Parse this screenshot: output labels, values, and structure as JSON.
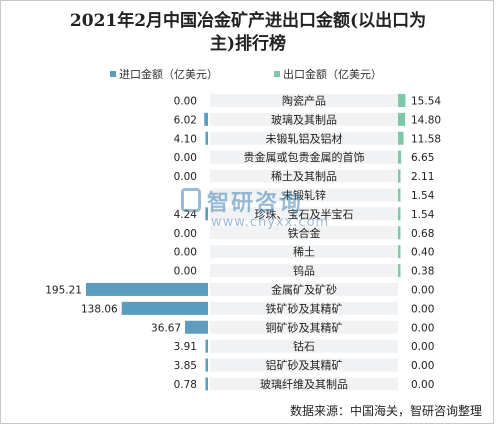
{
  "chart_data": {
    "type": "bar",
    "title": "2021年2月中国冶金矿产进出口金额(以出口为主)排行榜",
    "title_line1": "2021年2月中国冶金矿产进出口金额(以出口为",
    "title_line2": "主)排行榜",
    "categories": [
      "陶瓷产品",
      "玻璃及其制品",
      "未锻轧铝及铝材",
      "贵金属或包贵金属的首饰",
      "稀土及其制品",
      "未锻轧锌",
      "珍珠、宝石及半宝石",
      "铁合金",
      "稀土",
      "钨品",
      "金属矿及矿砂",
      "铁矿砂及其精矿",
      "铜矿砂及其精矿",
      "钴石",
      "铝矿砂及其精矿",
      "玻璃纤维及其制品"
    ],
    "series": [
      {
        "name": "进口金额（亿美元）",
        "values": [
          0.0,
          6.02,
          4.1,
          0.0,
          0.0,
          0.0,
          4.24,
          0.0,
          0.0,
          0.0,
          195.21,
          138.06,
          36.67,
          3.91,
          3.85,
          0.78
        ],
        "labels": [
          "0.00",
          "6.02",
          "4.10",
          "0.00",
          "0.00",
          "",
          "4.24",
          "0.00",
          "0.00",
          "0.00",
          "195.21",
          "138.06",
          "36.67",
          "3.91",
          "3.85",
          "0.78"
        ],
        "color": "#5b9cc0"
      },
      {
        "name": "出口金额（亿美元）",
        "values": [
          15.54,
          14.8,
          11.58,
          6.65,
          2.11,
          1.54,
          1.54,
          0.68,
          0.4,
          0.38,
          0.0,
          0.0,
          0.0,
          0.0,
          0.0,
          0.0
        ],
        "labels": [
          "15.54",
          "14.80",
          "11.58",
          "6.65",
          "2.11",
          "1.54",
          "1.54",
          "0.68",
          "0.40",
          "0.38",
          "0.00",
          "0.00",
          "0.00",
          "0.00",
          "0.00",
          "0.00"
        ],
        "color": "#7cc8a8"
      }
    ],
    "xlim_import": [
      0,
      200
    ],
    "xlim_export": [
      0,
      200
    ],
    "grid": false,
    "legend_position": "top"
  },
  "legend": {
    "import_label": "进口金额（亿美元）",
    "export_label": "出口金额（亿美元）"
  },
  "watermark": {
    "name": "智研咨询",
    "url": "www.chyxx.com"
  },
  "source": "数据来源：中国海关，智研咨询整理"
}
